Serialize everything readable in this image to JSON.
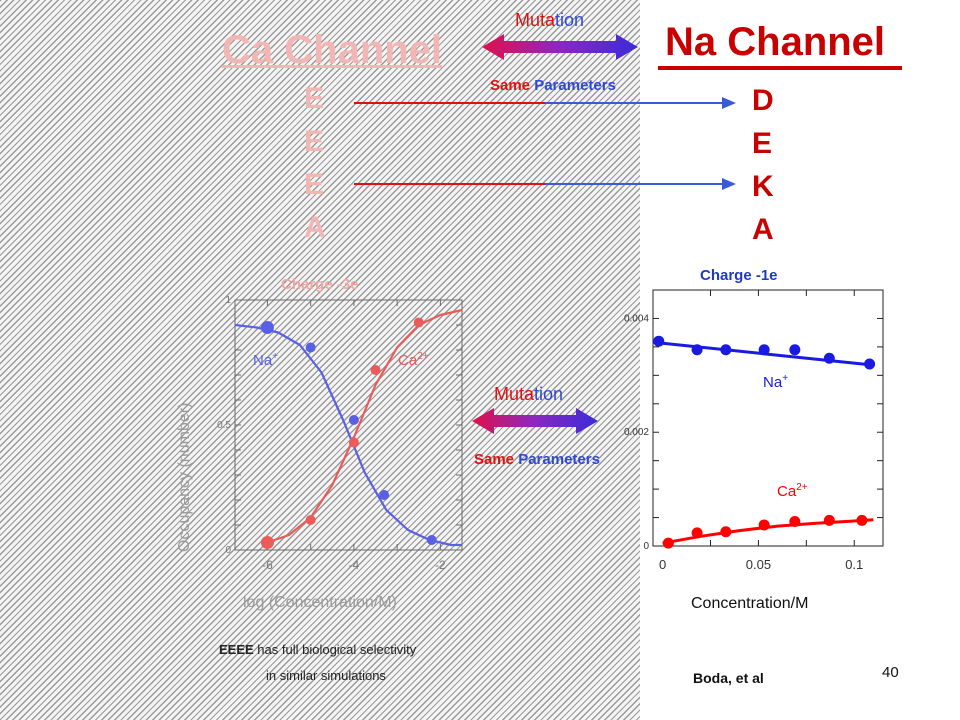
{
  "slide": {
    "page_number": "40",
    "ca_channel": {
      "title": "Ca Channel",
      "residues": [
        "E",
        "E",
        "E",
        "A"
      ]
    },
    "na_channel": {
      "title": "Na Channel",
      "residues": [
        "D",
        "E",
        "K",
        "A"
      ]
    },
    "mutation_top": {
      "label_a": "Muta",
      "label_b": "tion",
      "same_a": "Same",
      "same_b": " Parameters"
    },
    "mutation_mid": {
      "label_a": "Muta",
      "label_b": "tion",
      "same_a": "Same",
      "same_b": " Parameters"
    },
    "caption": {
      "line1_bold": "EEEE",
      "line1_rest": " has full biological selectivity",
      "line2": "in similar simulations"
    },
    "citation": "Boda, et al"
  },
  "colors": {
    "na_red": "#c80000",
    "ca_pink": "#f2b6b4",
    "arrow_blue": "#3a5bd8",
    "series_blue": "#1a1ae0",
    "series_red": "#ff0000"
  },
  "chart_data": [
    {
      "type": "scatter",
      "title": "Charge -3e",
      "xlabel": "log (Concentration/M)",
      "ylabel": "Occupancy (number)",
      "xlim": [
        -6.75,
        -1.5
      ],
      "ylim": [
        0,
        1
      ],
      "xticks": [
        -6,
        -4,
        -2
      ],
      "yticks": [
        0,
        0.5,
        1
      ],
      "tick_labels_x": [
        "-6",
        "-4",
        "-2"
      ],
      "tick_labels_y": [
        "0",
        "0.5",
        "1"
      ],
      "series": [
        {
          "name": "Na+",
          "label_base": "Na",
          "label_sup": "+",
          "color": "#5a60e6",
          "x": [
            -6.0,
            -5.0,
            -4.0,
            -3.3,
            -2.2
          ],
          "y": [
            0.89,
            0.81,
            0.52,
            0.22,
            0.04
          ],
          "fit_x": [
            -6.75,
            -6.25,
            -5.75,
            -5.25,
            -4.75,
            -4.25,
            -3.75,
            -3.25,
            -2.75,
            -2.25,
            -1.75,
            -1.5
          ],
          "fit_y": [
            0.9,
            0.89,
            0.87,
            0.82,
            0.71,
            0.52,
            0.31,
            0.16,
            0.08,
            0.04,
            0.02,
            0.02
          ]
        },
        {
          "name": "Ca2+",
          "label_base": "Ca",
          "label_sup": "2+",
          "color": "#ec5a5a",
          "x": [
            -6.0,
            -5.0,
            -4.0,
            -3.5,
            -2.5
          ],
          "y": [
            0.03,
            0.12,
            0.43,
            0.72,
            0.91
          ],
          "fit_x": [
            -6.0,
            -5.5,
            -5.0,
            -4.5,
            -4.0,
            -3.5,
            -3.0,
            -2.5,
            -2.0,
            -1.5
          ],
          "fit_y": [
            0.03,
            0.06,
            0.13,
            0.26,
            0.45,
            0.66,
            0.81,
            0.9,
            0.94,
            0.96
          ]
        }
      ]
    },
    {
      "type": "scatter",
      "title": "Charge -1e",
      "xlabel": "Concentration/M",
      "ylabel": "",
      "xlim": [
        -0.005,
        0.115
      ],
      "ylim": [
        0,
        0.0045
      ],
      "xticks": [
        0,
        0.05,
        0.1
      ],
      "yticks": [
        0,
        0.002,
        0.004
      ],
      "tick_labels_x": [
        "0",
        "0.05",
        "0.1"
      ],
      "tick_labels_y": [
        "0",
        "0.002",
        "0.004"
      ],
      "series": [
        {
          "name": "Na+",
          "label_base": "Na",
          "label_sup": "+",
          "color": "#1a1ae0",
          "x": [
            -0.002,
            0.018,
            0.033,
            0.053,
            0.069,
            0.087,
            0.108
          ],
          "y": [
            0.0036,
            0.00345,
            0.00345,
            0.00345,
            0.00345,
            0.0033,
            0.0032
          ],
          "fit_x": [
            -0.005,
            0.11
          ],
          "fit_y": [
            0.00358,
            0.00318
          ]
        },
        {
          "name": "Ca2+",
          "label_base": "Ca",
          "label_sup": "2+",
          "color": "#ff0000",
          "x": [
            0.003,
            0.018,
            0.033,
            0.053,
            0.069,
            0.087,
            0.104
          ],
          "y": [
            5e-05,
            0.00023,
            0.00025,
            0.00037,
            0.00043,
            0.00045,
            0.00045
          ],
          "fit_x": [
            0.0,
            0.02,
            0.04,
            0.06,
            0.08,
            0.1,
            0.11
          ],
          "fit_y": [
            5e-05,
            0.00017,
            0.00027,
            0.00035,
            0.0004,
            0.00044,
            0.00046
          ]
        }
      ]
    }
  ]
}
